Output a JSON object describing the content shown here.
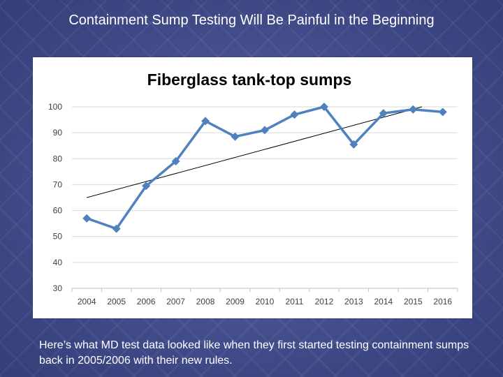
{
  "slide": {
    "title": "Containment Sump Testing Will Be Painful in the Beginning",
    "caption": "Here’s what MD test data looked like when they first started testing containment sumps back in 2005/2006 with their new rules."
  },
  "colors": {
    "series": "#4f81bd",
    "trendline": "#000000",
    "gridline": "#d9d9d9",
    "axis_text": "#404040",
    "background": "#3f4a86"
  },
  "chart_data": {
    "type": "line",
    "title": "Fiberglass tank-top sumps",
    "xlabel": "",
    "ylabel": "",
    "categories": [
      "2004",
      "2005",
      "2006",
      "2007",
      "2008",
      "2009",
      "2010",
      "2011",
      "2012",
      "2013",
      "2014",
      "2015",
      "2016"
    ],
    "series": [
      {
        "values": [
          57,
          53,
          69.5,
          79,
          94.5,
          88.5,
          91,
          97,
          100,
          85.5,
          97.5,
          99,
          98
        ]
      }
    ],
    "trendline": {
      "type": "linear",
      "start": 65,
      "end": 100
    },
    "ylim": [
      30,
      100
    ],
    "yticks": [
      "30",
      "40",
      "50",
      "60",
      "70",
      "80",
      "90",
      "100"
    ],
    "grid": true,
    "legend": "none",
    "marker": "diamond"
  }
}
